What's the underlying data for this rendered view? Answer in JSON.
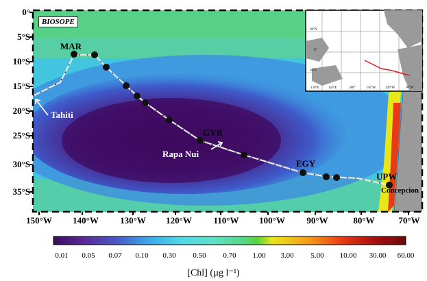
{
  "campaign_label": "BIOSOPE",
  "map_data": {
    "lat_ticks": [
      "0°",
      "5°S",
      "10°S",
      "15°S",
      "20°S",
      "25°S",
      "30°S",
      "35°S"
    ],
    "lon_ticks": [
      "150°W",
      "140°W",
      "130°W",
      "120°W",
      "110°W",
      "100°W",
      "90°W",
      "80°W",
      "70°W"
    ],
    "place_labels": {
      "tahiti": "Tahiti",
      "rapa_nui": "Rapa Nui",
      "concepcion": "Concepcion"
    },
    "station_labels": {
      "mar": "MAR",
      "gyr": "GYR",
      "egy": "EGY",
      "upw": "UPW"
    }
  },
  "inset": {
    "lat_ticks": [
      "30°N",
      "0°",
      "30°S"
    ],
    "lon_ticks": [
      "120°E",
      "150°E",
      "180°",
      "150°W",
      "120°W",
      "90°W"
    ]
  },
  "colorbar": {
    "ticks": [
      "0.01",
      "0.05",
      "0.07",
      "0.10",
      "0.30",
      "0.50",
      "0.70",
      "1.00",
      "3.00",
      "5.00",
      "10.00",
      "30.00",
      "60.00"
    ],
    "title": "[Chl] (µg l⁻¹)",
    "colors": [
      "#3d0a5e",
      "#5b2a9a",
      "#4a58c8",
      "#3aa8e8",
      "#4fd7e6",
      "#5fe0c8",
      "#57d686",
      "#5bd23a",
      "#e6e61a",
      "#f4a01a",
      "#e83a16",
      "#a80e0e",
      "#6e0a0a"
    ]
  },
  "colors": {
    "land": "#9a9a9a",
    "track": "#e8e8e8",
    "station": "#111111",
    "inset_track": "#d92020"
  }
}
